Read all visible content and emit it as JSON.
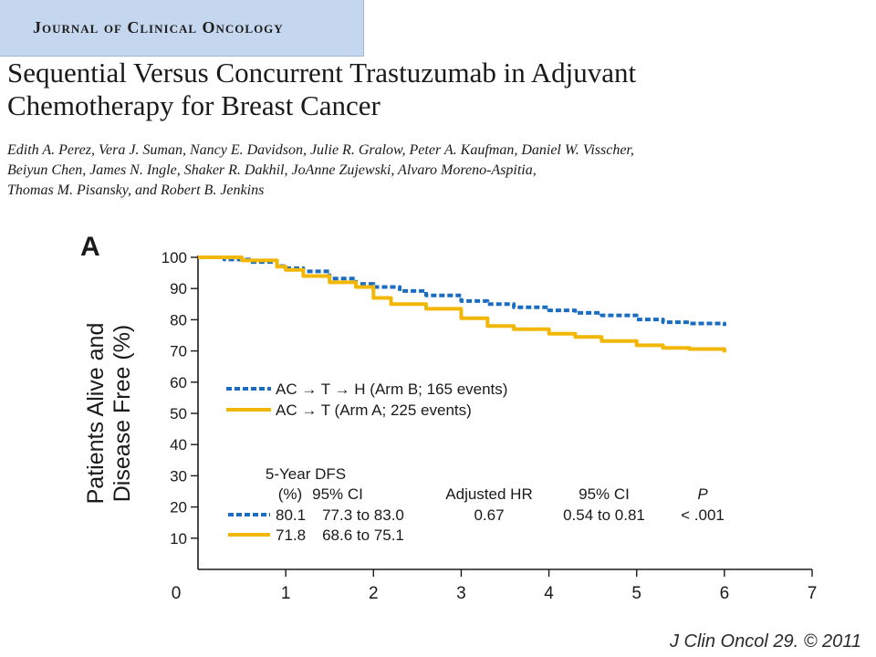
{
  "journal": {
    "name": "Journal of Clinical Oncology"
  },
  "paper": {
    "title_lines": [
      "Sequential Versus Concurrent Trastuzumab in Adjuvant",
      "Chemotherapy for Breast Cancer"
    ],
    "author_lines": [
      "Edith A. Perez, Vera J. Suman, Nancy E. Davidson, Julie R. Gralow, Peter A. Kaufman, Daniel W. Visscher,",
      "Beiyun Chen, James N. Ingle, Shaker R. Dakhil, JoAnne Zujewski, Alvaro Moreno-Aspitia,",
      "Thomas M. Pisansky, and Robert B. Jenkins"
    ]
  },
  "citation": "J Clin Oncol 29. © 2011",
  "chart_data": {
    "type": "line",
    "panel_label": "A",
    "title": "",
    "xlabel": "",
    "ylabel_lines": [
      "Patients Alive and",
      "Disease Free (%)"
    ],
    "xlim": [
      0,
      7
    ],
    "ylim": [
      0,
      100
    ],
    "x_ticks": [
      0,
      1,
      2,
      3,
      4,
      5,
      6,
      7
    ],
    "y_ticks": [
      10,
      20,
      30,
      40,
      50,
      60,
      70,
      80,
      90,
      100
    ],
    "y_tick_labels": [
      "10",
      "20",
      "30",
      "40",
      "50",
      "60",
      "70",
      "80",
      "90",
      "100"
    ],
    "x_tick_labels": [
      "0",
      "1",
      "2",
      "3",
      "4",
      "5",
      "6",
      "7"
    ],
    "grid": false,
    "legend_position": "center-left",
    "series": [
      {
        "name": "AC → T → H (Arm B; 165 events)",
        "color": "#1b6dc1",
        "style": "dashed",
        "x": [
          0,
          0.3,
          0.6,
          0.9,
          1.0,
          1.2,
          1.5,
          1.8,
          2.0,
          2.3,
          2.6,
          3.0,
          3.3,
          3.6,
          4.0,
          4.3,
          4.6,
          5.0,
          5.3,
          5.6,
          6.0
        ],
        "y": [
          100,
          99.3,
          98.5,
          97.2,
          96.5,
          95.5,
          93.2,
          91.5,
          90.5,
          89.2,
          87.8,
          86.0,
          85.0,
          84.0,
          83.0,
          82.2,
          81.4,
          80.1,
          79.2,
          78.8,
          78.0
        ]
      },
      {
        "name": "AC → T (Arm A; 225 events)",
        "color": "#f2b705",
        "style": "solid",
        "x": [
          0,
          0.2,
          0.5,
          0.9,
          1.0,
          1.2,
          1.5,
          1.8,
          2.0,
          2.2,
          2.6,
          3.0,
          3.3,
          3.6,
          4.0,
          4.3,
          4.6,
          5.0,
          5.3,
          5.6,
          6.0
        ],
        "y": [
          100,
          100,
          99,
          97,
          96,
          94,
          92,
          90.5,
          87,
          85,
          83.5,
          80.5,
          78,
          77,
          75.5,
          74.5,
          73.2,
          71.8,
          71,
          70.6,
          69.5
        ]
      }
    ],
    "stats_table": {
      "header_top": "5-Year DFS",
      "headers": [
        "(%)",
        "95% CI",
        "Adjusted HR",
        "95% CI",
        "P"
      ],
      "rows": [
        {
          "series_index": 0,
          "cells": [
            "80.1",
            "77.3 to 83.0",
            "0.67",
            "0.54 to 0.81",
            "< .001"
          ]
        },
        {
          "series_index": 1,
          "cells": [
            "71.8",
            "68.6 to 75.1",
            "",
            "",
            ""
          ]
        }
      ]
    }
  }
}
